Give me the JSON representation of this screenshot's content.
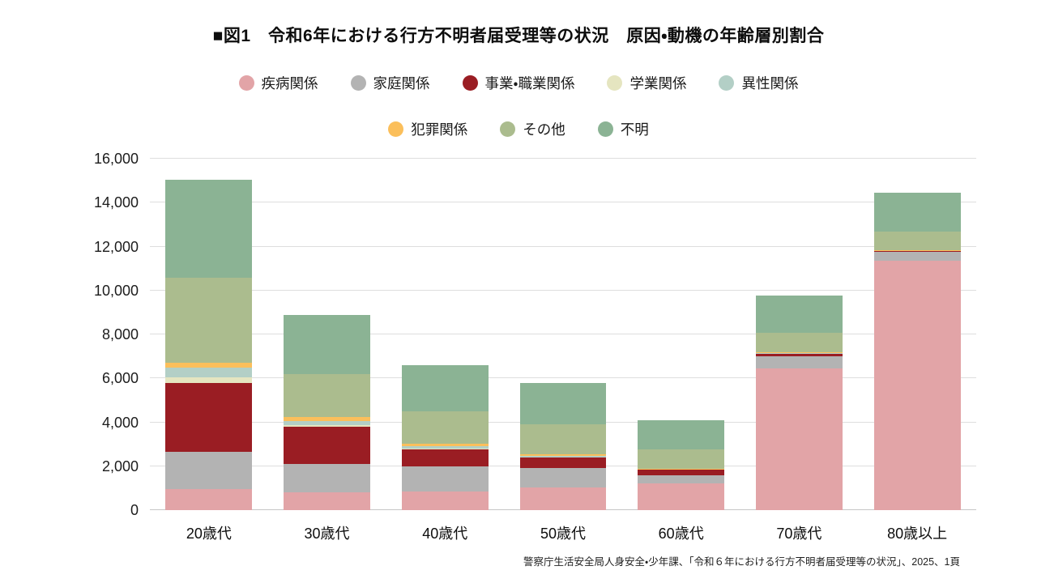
{
  "title": "■図1　令和6年における行方不明者届受理等の状況　原因・動機の年齢層別割合",
  "source_note": "警察庁生活安全局人身安全・少年課、「令和６年における行方不明者届受理等の状況」、2025、1頁",
  "chart_data": {
    "type": "bar",
    "stacked": true,
    "grid": true,
    "legend_position": "top",
    "categories": [
      "20歳代",
      "30歳代",
      "40歳代",
      "50歳代",
      "60歳代",
      "70歳代",
      "80歳以上"
    ],
    "series": [
      {
        "name": "疾病関係",
        "color": "#e2a4a7",
        "values": [
          950,
          800,
          850,
          1050,
          1200,
          6450,
          11350
        ]
      },
      {
        "name": "家庭関係",
        "color": "#b3b3b3",
        "values": [
          1720,
          1300,
          1150,
          850,
          400,
          570,
          400
        ]
      },
      {
        "name": "事業・職業関係",
        "color": "#9a1d23",
        "values": [
          3130,
          1700,
          750,
          480,
          230,
          90,
          30
        ]
      },
      {
        "name": "学業関係",
        "color": "#e5e5c0",
        "values": [
          250,
          60,
          60,
          30,
          10,
          10,
          0
        ]
      },
      {
        "name": "異性関係",
        "color": "#b3cfc6",
        "values": [
          430,
          180,
          100,
          60,
          20,
          20,
          20
        ]
      },
      {
        "name": "犯罪関係",
        "color": "#fbbf5b",
        "values": [
          220,
          200,
          110,
          80,
          30,
          40,
          50
        ]
      },
      {
        "name": "その他",
        "color": "#abbc8e",
        "values": [
          3870,
          1960,
          1480,
          1350,
          880,
          900,
          850
        ]
      },
      {
        "name": "不明",
        "color": "#8bb394",
        "values": [
          4480,
          2700,
          2100,
          1900,
          1330,
          1680,
          1750
        ]
      }
    ],
    "totals": [
      15050,
      8900,
      6600,
      5800,
      4100,
      9760,
      14450
    ],
    "ylim": [
      0,
      16000
    ],
    "ytick_step": 2000,
    "ytick_labels": [
      "0",
      "2,000",
      "4,000",
      "6,000",
      "8,000",
      "10,000",
      "12,000",
      "14,000",
      "16,000"
    ],
    "legend_rows": [
      [
        "疾病関係",
        "家庭関係",
        "事業・職業関係",
        "学業関係",
        "異性関係"
      ],
      [
        "犯罪関係",
        "その他",
        "不明"
      ]
    ]
  }
}
